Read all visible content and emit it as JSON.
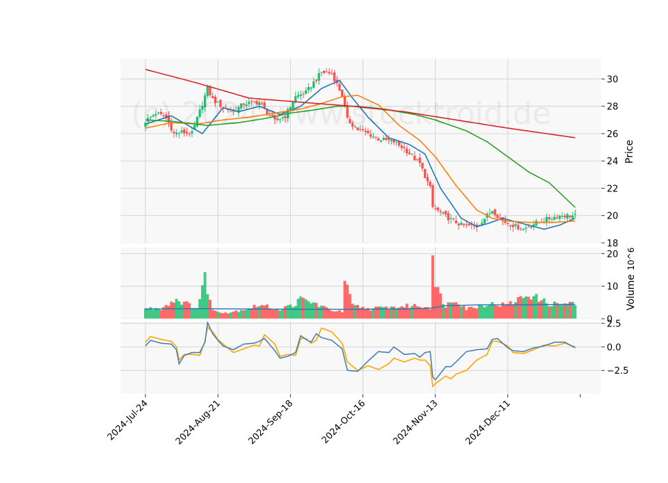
{
  "chart_data": {
    "type": "candlestick",
    "watermark": "(c) 2024 www.stocktroid.de",
    "x_ticks": [
      "2024-Jul-24",
      "2024-Aug-21",
      "2024-Sep-18",
      "2024-Oct-16",
      "2024-Nov-13",
      "2024-Dec-11"
    ],
    "x_tick_days": [
      0,
      28,
      56,
      84,
      112,
      140
    ],
    "price_panel": {
      "ylabel": "Price",
      "ylim": [
        18,
        31.5
      ],
      "yticks": [
        18,
        20,
        22,
        24,
        26,
        28,
        30
      ],
      "candles_close_keypoints": [
        [
          0,
          26.9
        ],
        [
          4,
          27.5
        ],
        [
          8,
          27.2
        ],
        [
          11,
          26.0
        ],
        [
          14,
          26.1
        ],
        [
          18,
          26.0
        ],
        [
          24,
          29.3
        ],
        [
          26,
          28.5
        ],
        [
          30,
          27.9
        ],
        [
          34,
          27.6
        ],
        [
          38,
          28.2
        ],
        [
          44,
          28.3
        ],
        [
          46,
          27.8
        ],
        [
          50,
          26.9
        ],
        [
          54,
          27.3
        ],
        [
          58,
          28.7
        ],
        [
          62,
          29.0
        ],
        [
          68,
          30.5
        ],
        [
          72,
          30.4
        ],
        [
          76,
          28.8
        ],
        [
          78,
          27.0
        ],
        [
          82,
          26.3
        ],
        [
          86,
          26.0
        ],
        [
          90,
          25.6
        ],
        [
          96,
          25.4
        ],
        [
          100,
          24.9
        ],
        [
          106,
          23.8
        ],
        [
          110,
          22.0
        ],
        [
          111,
          20.6
        ],
        [
          114,
          20.2
        ],
        [
          118,
          19.7
        ],
        [
          122,
          19.3
        ],
        [
          128,
          19.2
        ],
        [
          134,
          20.4
        ],
        [
          138,
          19.6
        ],
        [
          146,
          19.0
        ],
        [
          150,
          19.4
        ],
        [
          156,
          19.8
        ],
        [
          160,
          20.0
        ],
        [
          166,
          20.0
        ]
      ],
      "moving_averages": [
        {
          "color": "#1f77b4",
          "points": [
            [
              0,
              26.7
            ],
            [
              10,
              27.3
            ],
            [
              22,
              26.0
            ],
            [
              30,
              27.9
            ],
            [
              36,
              27.6
            ],
            [
              44,
              28.0
            ],
            [
              52,
              27.4
            ],
            [
              60,
              28.0
            ],
            [
              68,
              29.3
            ],
            [
              75,
              29.9
            ],
            [
              80,
              28.6
            ],
            [
              86,
              27.2
            ],
            [
              94,
              25.7
            ],
            [
              102,
              25.2
            ],
            [
              108,
              24.5
            ],
            [
              114,
              22.0
            ],
            [
              122,
              19.8
            ],
            [
              128,
              19.2
            ],
            [
              132,
              19.4
            ],
            [
              138,
              19.8
            ],
            [
              146,
              19.4
            ],
            [
              154,
              19.0
            ],
            [
              160,
              19.3
            ],
            [
              166,
              19.8
            ]
          ]
        },
        {
          "color": "#ff7f0e",
          "points": [
            [
              0,
              26.4
            ],
            [
              10,
              26.8
            ],
            [
              20,
              26.7
            ],
            [
              30,
              27.0
            ],
            [
              40,
              27.2
            ],
            [
              50,
              27.5
            ],
            [
              60,
              27.8
            ],
            [
              68,
              28.2
            ],
            [
              76,
              28.7
            ],
            [
              82,
              28.8
            ],
            [
              90,
              28.1
            ],
            [
              98,
              26.6
            ],
            [
              106,
              25.5
            ],
            [
              112,
              24.3
            ],
            [
              120,
              22.2
            ],
            [
              128,
              20.4
            ],
            [
              134,
              19.8
            ],
            [
              140,
              19.6
            ],
            [
              148,
              19.5
            ],
            [
              158,
              19.5
            ],
            [
              166,
              19.6
            ]
          ]
        },
        {
          "color": "#2ca02c",
          "points": [
            [
              0,
              27.0
            ],
            [
              10,
              26.9
            ],
            [
              24,
              26.6
            ],
            [
              36,
              26.8
            ],
            [
              46,
              27.1
            ],
            [
              56,
              27.5
            ],
            [
              64,
              27.7
            ],
            [
              74,
              28.0
            ],
            [
              82,
              28.0
            ],
            [
              92,
              27.8
            ],
            [
              104,
              27.4
            ],
            [
              112,
              27.0
            ],
            [
              124,
              26.2
            ],
            [
              132,
              25.4
            ],
            [
              140,
              24.3
            ],
            [
              148,
              23.2
            ],
            [
              156,
              22.4
            ],
            [
              166,
              20.6
            ]
          ]
        },
        {
          "color": "#d62728",
          "points": [
            [
              0,
              30.7
            ],
            [
              20,
              29.7
            ],
            [
              40,
              28.6
            ],
            [
              60,
              28.3
            ],
            [
              80,
              28.0
            ],
            [
              100,
              27.6
            ],
            [
              120,
              27.0
            ],
            [
              140,
              26.4
            ],
            [
              166,
              25.7
            ]
          ]
        }
      ]
    },
    "volume_panel": {
      "ylabel": "Volume",
      "scale": "10^6",
      "ylim": [
        0,
        22
      ],
      "yticks": [
        0,
        10,
        20
      ],
      "volume_keypoints": [
        [
          0,
          3.0
        ],
        [
          6,
          3.2
        ],
        [
          12,
          6.0
        ],
        [
          20,
          3.0
        ],
        [
          23,
          12.5
        ],
        [
          26,
          2.5
        ],
        [
          32,
          1.8
        ],
        [
          40,
          3.2
        ],
        [
          44,
          4.2
        ],
        [
          52,
          2.8
        ],
        [
          58,
          4.5
        ],
        [
          60,
          6.0
        ],
        [
          66,
          4.5
        ],
        [
          70,
          3.0
        ],
        [
          76,
          2.0
        ],
        [
          77,
          11.5
        ],
        [
          80,
          4.0
        ],
        [
          86,
          3.0
        ],
        [
          96,
          3.5
        ],
        [
          104,
          4.0
        ],
        [
          110,
          3.5
        ],
        [
          111,
          22.0
        ],
        [
          112,
          9.5
        ],
        [
          113,
          8.5
        ],
        [
          116,
          4.0
        ],
        [
          120,
          6.0
        ],
        [
          124,
          3.0
        ],
        [
          132,
          4.5
        ],
        [
          140,
          4.2
        ],
        [
          148,
          7.5
        ],
        [
          156,
          4.5
        ],
        [
          166,
          4.5
        ]
      ],
      "ma_line": {
        "color": "#1f77b4",
        "points": [
          [
            0,
            3.0
          ],
          [
            20,
            3.1
          ],
          [
            40,
            3.0
          ],
          [
            60,
            2.9
          ],
          [
            80,
            2.9
          ],
          [
            100,
            3.0
          ],
          [
            110,
            3.2
          ],
          [
            116,
            4.0
          ],
          [
            130,
            4.3
          ],
          [
            150,
            4.3
          ],
          [
            166,
            4.4
          ]
        ]
      }
    },
    "oscillator_panel": {
      "ylim": [
        -5.0,
        2.7
      ],
      "yticks": [
        -2.5,
        0.0,
        2.5
      ],
      "ytick_labels": [
        "−2.5",
        "0.0",
        "2.5"
      ],
      "series": [
        {
          "color": "#ffa500",
          "points": [
            [
              0,
              0.5
            ],
            [
              2,
              1.1
            ],
            [
              6,
              0.8
            ],
            [
              10,
              0.6
            ],
            [
              12,
              0.0
            ],
            [
              13,
              -1.4
            ],
            [
              15,
              -0.8
            ],
            [
              18,
              -0.8
            ],
            [
              21,
              -0.9
            ],
            [
              23,
              0.6
            ],
            [
              24,
              2.1
            ],
            [
              26,
              1.6
            ],
            [
              28,
              0.8
            ],
            [
              30,
              0.3
            ],
            [
              34,
              -0.6
            ],
            [
              38,
              -0.2
            ],
            [
              42,
              0.2
            ],
            [
              44,
              0.1
            ],
            [
              46,
              1.3
            ],
            [
              50,
              0.3
            ],
            [
              52,
              -1.0
            ],
            [
              55,
              -0.8
            ],
            [
              58,
              -0.9
            ],
            [
              60,
              0.9
            ],
            [
              62,
              0.9
            ],
            [
              64,
              0.4
            ],
            [
              66,
              0.7
            ],
            [
              68,
              2.0
            ],
            [
              72,
              1.6
            ],
            [
              76,
              0.4
            ],
            [
              78,
              -1.6
            ],
            [
              82,
              -2.5
            ],
            [
              86,
              -2.0
            ],
            [
              90,
              -2.4
            ],
            [
              94,
              -1.8
            ],
            [
              96,
              -1.2
            ],
            [
              100,
              -1.6
            ],
            [
              104,
              -1.2
            ],
            [
              106,
              -1.4
            ],
            [
              108,
              -1.4
            ],
            [
              110,
              -2.0
            ],
            [
              111,
              -4.2
            ],
            [
              112,
              -3.9
            ],
            [
              116,
              -3.1
            ],
            [
              118,
              -3.4
            ],
            [
              120,
              -2.9
            ],
            [
              124,
              -2.5
            ],
            [
              128,
              -1.4
            ],
            [
              132,
              -0.8
            ],
            [
              134,
              0.6
            ],
            [
              136,
              0.6
            ],
            [
              140,
              0.1
            ],
            [
              142,
              -0.6
            ],
            [
              146,
              -0.7
            ],
            [
              150,
              -0.3
            ],
            [
              154,
              0.2
            ],
            [
              158,
              0.1
            ],
            [
              162,
              0.4
            ],
            [
              166,
              0.0
            ]
          ]
        },
        {
          "color": "#4a7fb5",
          "points": [
            [
              0,
              0.1
            ],
            [
              2,
              0.7
            ],
            [
              6,
              0.4
            ],
            [
              10,
              0.3
            ],
            [
              12,
              -0.3
            ],
            [
              13,
              -1.8
            ],
            [
              15,
              -0.9
            ],
            [
              18,
              -0.6
            ],
            [
              21,
              -0.6
            ],
            [
              23,
              0.5
            ],
            [
              24,
              2.6
            ],
            [
              26,
              1.4
            ],
            [
              28,
              0.7
            ],
            [
              30,
              0.1
            ],
            [
              34,
              -0.3
            ],
            [
              38,
              0.3
            ],
            [
              42,
              0.4
            ],
            [
              44,
              0.6
            ],
            [
              46,
              0.9
            ],
            [
              50,
              -0.4
            ],
            [
              52,
              -1.2
            ],
            [
              55,
              -1.0
            ],
            [
              58,
              -0.6
            ],
            [
              60,
              1.2
            ],
            [
              62,
              0.8
            ],
            [
              64,
              0.5
            ],
            [
              66,
              1.4
            ],
            [
              68,
              1.0
            ],
            [
              72,
              0.7
            ],
            [
              76,
              -0.2
            ],
            [
              78,
              -2.5
            ],
            [
              82,
              -2.6
            ],
            [
              86,
              -1.5
            ],
            [
              90,
              -0.5
            ],
            [
              94,
              -0.6
            ],
            [
              96,
              0.0
            ],
            [
              100,
              -0.8
            ],
            [
              104,
              -0.7
            ],
            [
              106,
              -1.1
            ],
            [
              108,
              -0.6
            ],
            [
              110,
              -0.5
            ],
            [
              111,
              -3.2
            ],
            [
              112,
              -3.5
            ],
            [
              116,
              -2.1
            ],
            [
              118,
              -2.1
            ],
            [
              120,
              -1.6
            ],
            [
              124,
              -0.5
            ],
            [
              128,
              -0.3
            ],
            [
              132,
              -0.2
            ],
            [
              134,
              0.8
            ],
            [
              136,
              0.9
            ],
            [
              140,
              -0.1
            ],
            [
              142,
              -0.4
            ],
            [
              146,
              -0.5
            ],
            [
              150,
              -0.1
            ],
            [
              154,
              0.1
            ],
            [
              158,
              0.5
            ],
            [
              162,
              0.5
            ],
            [
              166,
              -0.1
            ]
          ]
        }
      ]
    },
    "colors": {
      "up": "#20c070",
      "down": "#ff5050",
      "panel_bg": "#f8f8f8",
      "grid": "#cccccc"
    }
  }
}
